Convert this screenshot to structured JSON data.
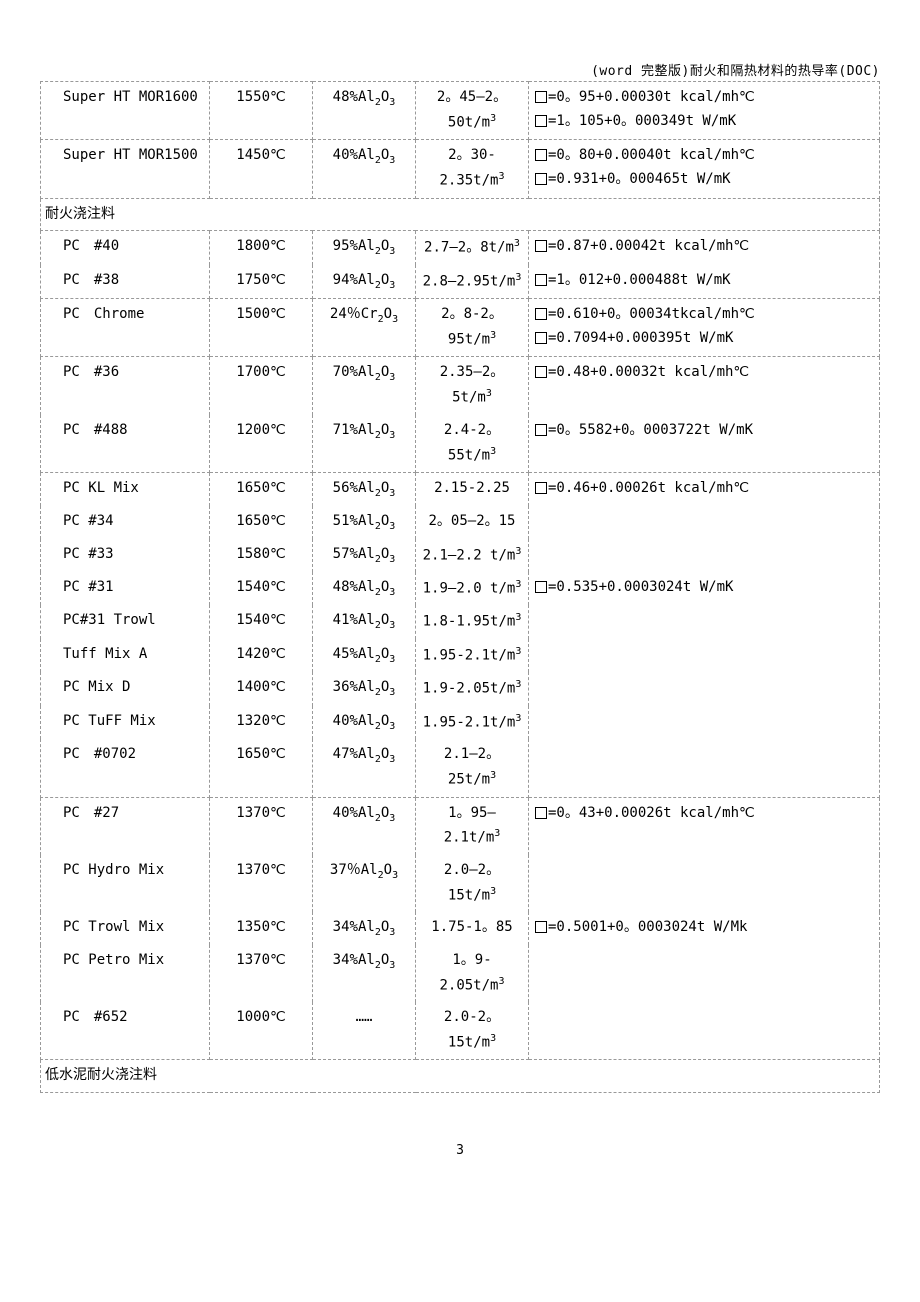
{
  "header": "(word 完整版)耐火和隔热材料的热导率(DOC)",
  "page_number": "3",
  "section1": "耐火浇注料",
  "section2": "低水泥耐火浇注料",
  "rows": [
    {
      "c1": "Super HT MOR1600",
      "c2": "1550℃",
      "c3": "48%Al₂O₃",
      "c4": "2。45—2。50t/m³",
      "c5": "□=0。95+0.00030t kcal/mh℃\n□=1。105+0。000349t W/mK"
    },
    {
      "c1": "Super HT MOR1500",
      "c2": "1450℃",
      "c3": "40%Al₂O₃",
      "c4": "2。30-2.35t/m³",
      "c5": "□=0。80+0.00040t kcal/mh℃\n□=0.931+0。000465t W/mK"
    },
    {
      "section": "section1"
    },
    {
      "c1": "PC　#40",
      "c2": "1800℃",
      "c3": "95%Al₂O₃",
      "c4": "2.7—2。8t/m³",
      "c5": "□=0.87+0.00042t kcal/mh℃",
      "nobottom": true
    },
    {
      "c1": "PC　#38",
      "c2": "1750℃",
      "c3": "94%Al₂O₃",
      "c4": "2.8—2.95t/m³",
      "c5": "□=1。012+0.000488t W/mK",
      "notop": true
    },
    {
      "c1": "PC　Chrome",
      "c2": "1500℃",
      "c3": "24％Cr₂O₃",
      "c4": "2。8-2。95t/m³",
      "c5": "□=0.610+0。00034tkcal/mh℃\n□=0.7094+0.000395t W/mK"
    },
    {
      "c1": "PC　#36",
      "c2": "1700℃",
      "c3": "70%Al₂O₃",
      "c4": "2.35—2。5t/m³",
      "c5": "□=0.48+0.00032t kcal/mh℃",
      "nobottom": true
    },
    {
      "c1": "PC　#488",
      "c2": "1200℃",
      "c3": "71%Al₂O₃",
      "c4": "2.4-2。55t/m³",
      "c5": "□=0。5582+0。0003722t W/mK",
      "notop": true
    },
    {
      "c1": "PC KL Mix",
      "c2": "1650℃",
      "c3": "56%Al₂O₃",
      "c4": "2.15-2.25",
      "c5": "□=0.46+0.00026t kcal/mh℃",
      "nobottom": true
    },
    {
      "c1": "PC #34",
      "c2": "1650℃",
      "c3": "51%Al₂O₃",
      "c4": "2。05—2。15",
      "c5": "",
      "notop": true,
      "nobottom": true
    },
    {
      "c1": "PC #33",
      "c2": "1580℃",
      "c3": "57%Al₂O₃",
      "c4": "2.1—2.2 t/m³",
      "c5": "",
      "notop": true,
      "nobottom": true
    },
    {
      "c1": "PC #31",
      "c2": "1540℃",
      "c3": "48%Al₂O₃",
      "c4": "1.9—2.0 t/m³",
      "c5": "□=0.535+0.0003024t W/mK",
      "notop": true,
      "nobottom": true
    },
    {
      "c1": "PC#31 Trowl",
      "c2": "1540℃",
      "c3": "41%Al₂O₃",
      "c4": "1.8-1.95t/m³",
      "c5": "",
      "notop": true,
      "nobottom": true
    },
    {
      "c1": "Tuff Mix A",
      "c2": "1420℃",
      "c3": "45%Al₂O₃",
      "c4": "1.95-2.1t/m³",
      "c5": "",
      "notop": true,
      "nobottom": true
    },
    {
      "c1": "PC Mix D",
      "c2": "1400℃",
      "c3": "36%Al₂O₃",
      "c4": "1.9-2.05t/m³",
      "c5": "",
      "notop": true,
      "nobottom": true
    },
    {
      "c1": "PC TuFF Mix",
      "c2": "1320℃",
      "c3": "40%Al₂O₃",
      "c4": "1.95-2.1t/m³",
      "c5": "",
      "notop": true,
      "nobottom": true
    },
    {
      "c1": "PC　#0702",
      "c2": "1650℃",
      "c3": "47%Al₂O₃",
      "c4": "2.1—2。25t/m³",
      "c5": "",
      "notop": true
    },
    {
      "c1": "PC　#27",
      "c2": "1370℃",
      "c3": "40%Al₂O₃",
      "c4": "1。95—2.1t/m³",
      "c5": "□=0。43+0.00026t kcal/mh℃",
      "nobottom": true
    },
    {
      "c1": "PC Hydro Mix",
      "c2": "1370℃",
      "c3": "37％Al₂O₃",
      "c4": "2.0—2。15t/m³",
      "c5": "",
      "notop": true,
      "nobottom": true
    },
    {
      "c1": "PC Trowl Mix",
      "c2": "1350℃",
      "c3": "34%Al₂O₃",
      "c4": "1.75-1。85",
      "c5": "□=0.5001+0。0003024t W/Mk",
      "notop": true,
      "nobottom": true
    },
    {
      "c1": "PC Petro Mix",
      "c2": "1370℃",
      "c3": "34%Al₂O₃",
      "c4": "1。9-2.05t/m³",
      "c5": "",
      "notop": true,
      "nobottom": true
    },
    {
      "c1": "PC　#652",
      "c2": "1000℃",
      "c3": "……",
      "c4": "2.0-2。15t/m³",
      "c5": "",
      "notop": true
    },
    {
      "section": "section2"
    }
  ]
}
